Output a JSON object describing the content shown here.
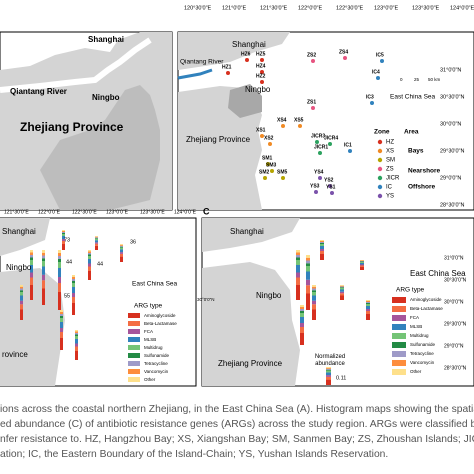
{
  "panel_a": {
    "labels": [
      "Shanghai",
      "Qiantang River",
      "Ningbo",
      "Zhejiang Province"
    ]
  },
  "panel_b": {
    "xticks": [
      "120°30'0\"E",
      "121°0'0\"E",
      "121°30'0\"E",
      "122°0'0\"E",
      "122°30'0\"E",
      "123°0'0\"E",
      "123°30'0\"E",
      "124°0'0\"E"
    ],
    "yticks": [
      "31°0'0\"N",
      "30°30'0\"N",
      "30°0'0\"N",
      "29°30'0\"N",
      "29°0'0\"N",
      "28°30'0\"N"
    ],
    "places": [
      "Shanghai",
      "Qiantang River",
      "Ningbo",
      "Zhejiang Province",
      "East China Sea"
    ],
    "stations": [
      "HZ6",
      "HZ5",
      "HZ1",
      "HZ4",
      "HZ2",
      "ZS2",
      "ZS4",
      "IC5",
      "IC4",
      "IC3",
      "ZS1",
      "XS4",
      "XS5",
      "XS1",
      "XS2",
      "JICR3",
      "JICR4",
      "JICR1",
      "IC1",
      "SM1",
      "SM3",
      "SM2",
      "SM5",
      "YS4",
      "YS2",
      "YS3",
      "YS1"
    ],
    "scale": [
      "0",
      "25",
      "50 km"
    ],
    "legend": {
      "zone_title": "Zone",
      "area_title": "Area",
      "zones": [
        {
          "code": "HZ",
          "color": "#d7301f"
        },
        {
          "code": "XS",
          "color": "#f08a24"
        },
        {
          "code": "SM",
          "color": "#b5a400"
        },
        {
          "code": "ZS",
          "color": "#e75480"
        },
        {
          "code": "JICR",
          "color": "#2ca25f"
        },
        {
          "code": "IC",
          "color": "#3182bd"
        },
        {
          "code": "YS",
          "color": "#7b52ab"
        }
      ],
      "areas": [
        "Bays",
        "Nearshore",
        "Offshore"
      ]
    }
  },
  "panel_left": {
    "xticks": [
      "121°30'0\"E",
      "122°0'0\"E",
      "122°30'0\"E",
      "123°0'0\"E",
      "123°30'0\"E",
      "124°0'0\"E"
    ],
    "yticks": [
      "30°0'0\"N"
    ],
    "places": [
      "Shanghai",
      "Ningbo",
      "East China Sea",
      "rovince"
    ],
    "counts": [
      "73",
      "36",
      "44",
      "44",
      "55"
    ],
    "legend_title": "ARG type"
  },
  "panel_c": {
    "label": "C",
    "yticks": [
      "31°0'0\"N",
      "30°30'0\"N",
      "30°0'0\"N",
      "29°30'0\"N",
      "29°0'0\"N",
      "28°30'0\"N"
    ],
    "places": [
      "Shanghai",
      "Ningbo",
      "Zhejiang Province",
      "East China Sea"
    ],
    "legend_title": "ARG type",
    "abundance_title": "Normalized\nabundance",
    "abundance_value": "0.11"
  },
  "arg_types": [
    {
      "name": "Aminoglycoside",
      "color": "#d7301f"
    },
    {
      "name": "Beta-Lactamase",
      "color": "#f46d43"
    },
    {
      "name": "FCA",
      "color": "#a6559b"
    },
    {
      "name": "MLSB",
      "color": "#3182bd"
    },
    {
      "name": "Multidrug",
      "color": "#74c476"
    },
    {
      "name": "Sulfonamide",
      "color": "#238b45"
    },
    {
      "name": "Tetracycline",
      "color": "#9e9ac8"
    },
    {
      "name": "Vancomycin",
      "color": "#fd8d3c"
    },
    {
      "name": "Other",
      "color": "#fee08b"
    }
  ],
  "caption": [
    "ions across the coastal northern Zhejiang, in the East China Sea (A). Histogram maps showing the spatial dist",
    "ed abundance (C) of antibiotic resistance genes (ARGs) across the study region. ARGs were classified based c",
    "nfer resistance to. HZ, Hangzhou Bay; XS, Xiangshan Bay; SM, Sanmen Bay; ZS, Zhoushan Islands; JICR, Jiush",
    "ation; IC, the Eastern Boundary of the Island-Chain; YS, Yushan Islands Reservation."
  ]
}
